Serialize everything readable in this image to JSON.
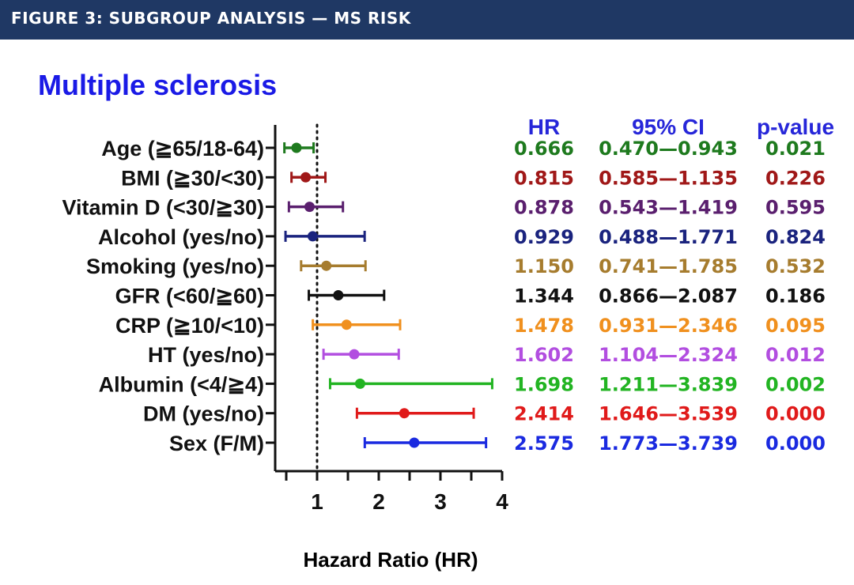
{
  "header": {
    "title": "FIGURE 3: SUBGROUP ANALYSIS — MS RISK"
  },
  "chart_data": {
    "type": "forest",
    "title": "Multiple sclerosis",
    "xlabel": "Hazard Ratio (HR)",
    "xlim": [
      0.3,
      4
    ],
    "xticks": [
      1,
      2,
      3,
      4
    ],
    "reference_line": 1,
    "column_headers": {
      "hr": "HR",
      "ci": "95% CI",
      "p": "p-value"
    },
    "title_color": "#1a1ae6",
    "header_color": "#2626d9",
    "rows": [
      {
        "label": "Age (≧65/18-64)",
        "hr": 0.666,
        "ci_low": 0.47,
        "ci_high": 0.943,
        "hr_text": "0.666",
        "ci_text": "0.470—0.943",
        "p_text": "0.021",
        "color": "#1e7a1e"
      },
      {
        "label": "BMI (≧30/<30)",
        "hr": 0.815,
        "ci_low": 0.585,
        "ci_high": 1.135,
        "hr_text": "0.815",
        "ci_text": "0.585—1.135",
        "p_text": "0.226",
        "color": "#a01818"
      },
      {
        "label": "Vitamin D (<30/≧30)",
        "hr": 0.878,
        "ci_low": 0.543,
        "ci_high": 1.419,
        "hr_text": "0.878",
        "ci_text": "0.543—1.419",
        "p_text": "0.595",
        "color": "#5a1f6e"
      },
      {
        "label": "Alcohol (yes/no)",
        "hr": 0.929,
        "ci_low": 0.488,
        "ci_high": 1.771,
        "hr_text": "0.929",
        "ci_text": "0.488—1.771",
        "p_text": "0.824",
        "color": "#1a237e"
      },
      {
        "label": "Smoking (yes/no)",
        "hr": 1.15,
        "ci_low": 0.741,
        "ci_high": 1.785,
        "hr_text": "1.150",
        "ci_text": "0.741—1.785",
        "p_text": "0.532",
        "color": "#a67c2e"
      },
      {
        "label": "GFR (<60/≧60)",
        "hr": 1.344,
        "ci_low": 0.866,
        "ci_high": 2.087,
        "hr_text": "1.344",
        "ci_text": "0.866—2.087",
        "p_text": "0.186",
        "color": "#111111"
      },
      {
        "label": "CRP (≧10/<10)",
        "hr": 1.478,
        "ci_low": 0.931,
        "ci_high": 2.346,
        "hr_text": "1.478",
        "ci_text": "0.931—2.346",
        "p_text": "0.095",
        "color": "#f0901e"
      },
      {
        "label": "HT (yes/no)",
        "hr": 1.602,
        "ci_low": 1.104,
        "ci_high": 2.324,
        "hr_text": "1.602",
        "ci_text": "1.104—2.324",
        "p_text": "0.012",
        "color": "#b24ee0"
      },
      {
        "label": "Albumin (<4/≧4)",
        "hr": 1.698,
        "ci_low": 1.211,
        "ci_high": 3.839,
        "hr_text": "1.698",
        "ci_text": "1.211—3.839",
        "p_text": "0.002",
        "color": "#22b422"
      },
      {
        "label": "DM (yes/no)",
        "hr": 2.414,
        "ci_low": 1.646,
        "ci_high": 3.539,
        "hr_text": "2.414",
        "ci_text": "1.646—3.539",
        "p_text": "0.000",
        "color": "#e01a1a"
      },
      {
        "label": "Sex (F/M)",
        "hr": 2.575,
        "ci_low": 1.773,
        "ci_high": 3.739,
        "hr_text": "2.575",
        "ci_text": "1.773—3.739",
        "p_text": "0.000",
        "color": "#1a2ae0"
      }
    ]
  }
}
